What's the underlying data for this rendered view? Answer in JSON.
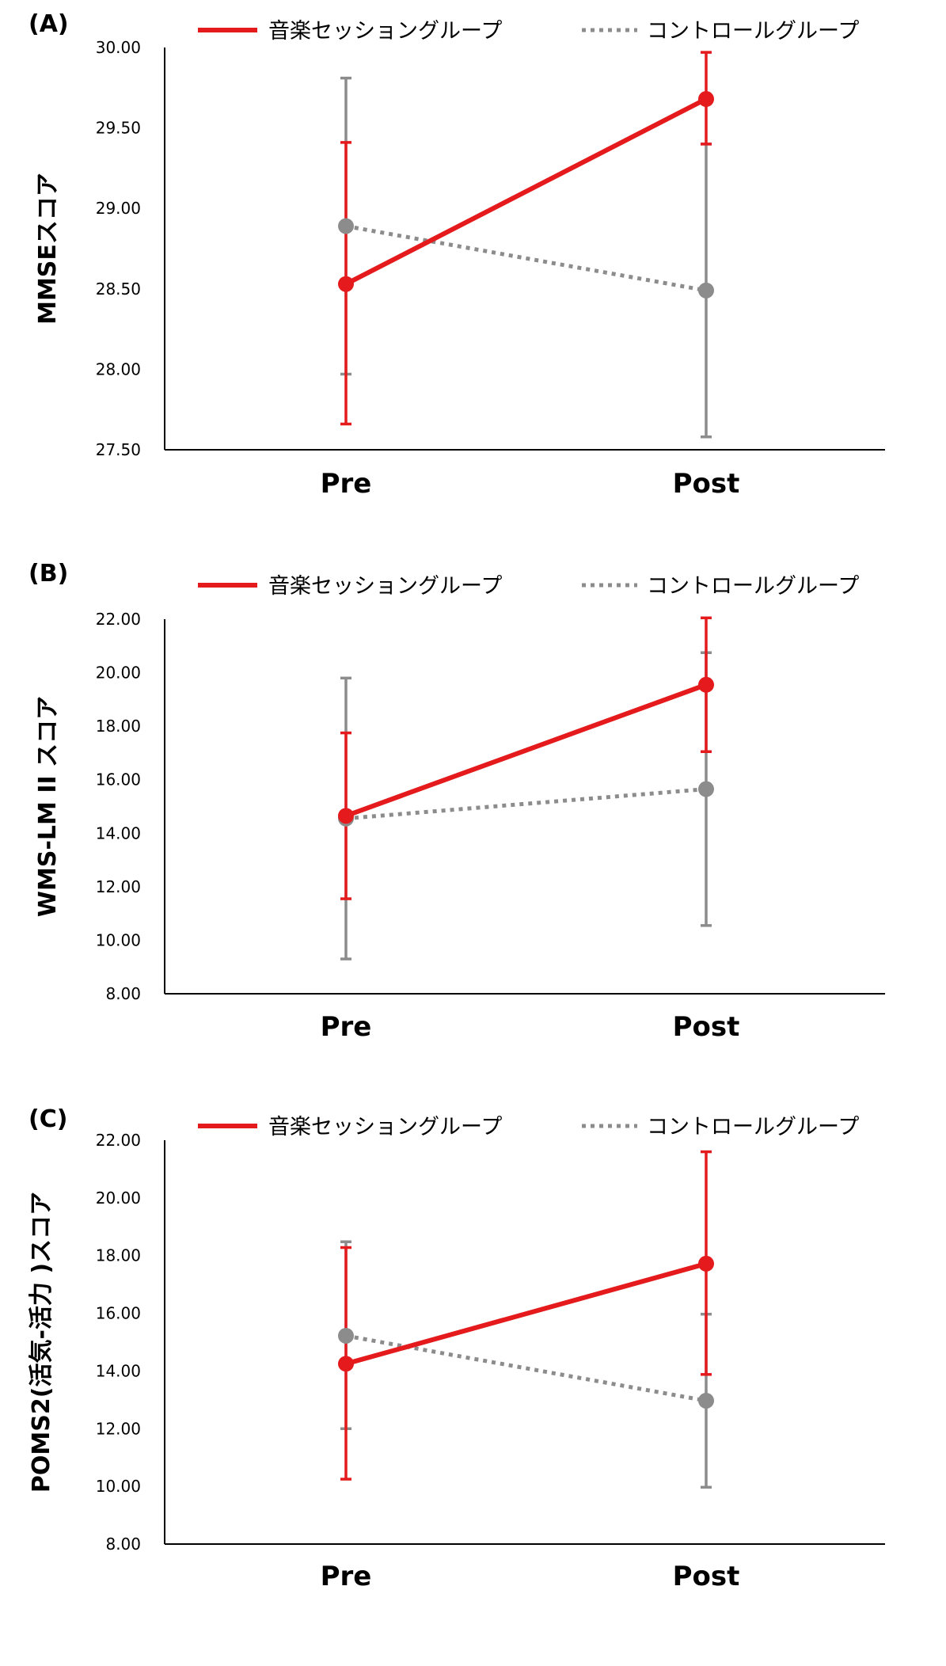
{
  "chart_data": [
    {
      "panel": "(A)",
      "type": "line",
      "ylabel": "MMSEスコア",
      "categories": [
        "Pre",
        "Post"
      ],
      "ylim": [
        27.5,
        30.0
      ],
      "yticks": [
        "27.50",
        "28.00",
        "28.50",
        "29.00",
        "29.50",
        "30.00"
      ],
      "series": [
        {
          "name": "音楽セッショングループ",
          "values": [
            28.53,
            29.68
          ],
          "error_low": [
            27.66,
            29.4
          ],
          "error_high": [
            29.41,
            29.97
          ],
          "color": "#e41a1c",
          "style": "solid"
        },
        {
          "name": "コントロールグループ",
          "values": [
            28.89,
            28.49
          ],
          "error_low": [
            27.97,
            27.58
          ],
          "error_high": [
            29.81,
            29.4
          ],
          "color": "#8c8c8c",
          "style": "dotted"
        }
      ]
    },
    {
      "panel": "(B)",
      "type": "line",
      "ylabel": "WMS-LM II スコア",
      "categories": [
        "Pre",
        "Post"
      ],
      "ylim": [
        8.0,
        22.0
      ],
      "yticks": [
        "8.00",
        "10.00",
        "12.00",
        "14.00",
        "16.00",
        "18.00",
        "20.00",
        "22.00"
      ],
      "series": [
        {
          "name": "音楽セッショングループ",
          "values": [
            14.65,
            19.55
          ],
          "error_low": [
            11.55,
            17.05
          ],
          "error_high": [
            17.75,
            22.05
          ],
          "color": "#e41a1c",
          "style": "solid"
        },
        {
          "name": "コントロールグループ",
          "values": [
            14.55,
            15.65
          ],
          "error_low": [
            9.3,
            10.55
          ],
          "error_high": [
            19.8,
            20.75
          ],
          "color": "#8c8c8c",
          "style": "dotted"
        }
      ]
    },
    {
      "panel": "(C)",
      "type": "line",
      "ylabel": "POMS2(活気-活力 )スコア",
      "categories": [
        "Pre",
        "Post"
      ],
      "ylim": [
        8.0,
        22.0
      ],
      "yticks": [
        "8.00",
        "10.00",
        "12.00",
        "14.00",
        "16.00",
        "18.00",
        "20.00",
        "22.00"
      ],
      "series": [
        {
          "name": "音楽セッショングループ",
          "values": [
            14.25,
            17.72
          ],
          "error_low": [
            10.25,
            13.88
          ],
          "error_high": [
            18.28,
            21.6
          ],
          "color": "#e41a1c",
          "style": "solid"
        },
        {
          "name": "コントロールグループ",
          "values": [
            15.22,
            12.97
          ],
          "error_low": [
            12.0,
            9.97
          ],
          "error_high": [
            18.48,
            15.97
          ],
          "color": "#8c8c8c",
          "style": "dotted"
        }
      ]
    }
  ]
}
